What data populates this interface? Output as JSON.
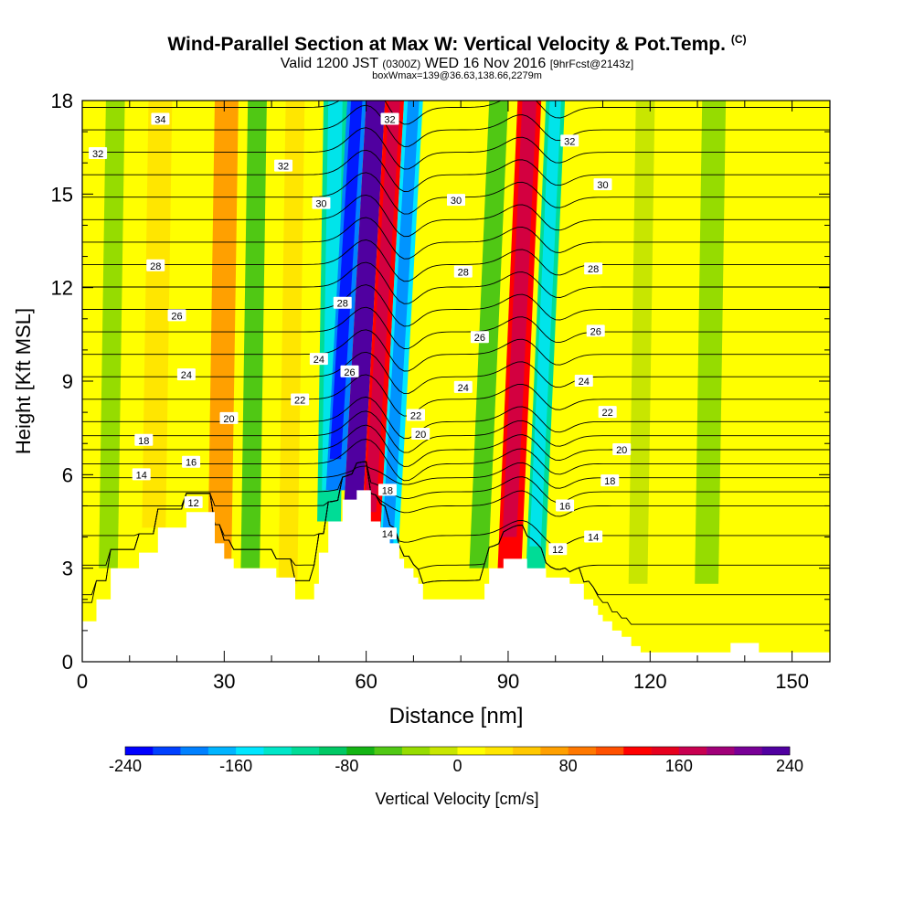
{
  "title": {
    "main": "Wind-Parallel Section at Max W: Vertical Velocity & Pot.Temp.",
    "copyright": "(C)",
    "valid_prefix": "Valid 1200 JST",
    "valid_utc": "(0300Z)",
    "valid_date": "WED 16 Nov 2016",
    "forecast": "[9hrFcst@2143z]",
    "box": "boxWmax=139@36.63,138.66,2279m"
  },
  "chart_data": {
    "type": "heatmap",
    "xlabel": "Distance [nm]",
    "ylabel": "Height [Kft MSL]",
    "xlim": [
      0,
      158
    ],
    "ylim": [
      0,
      18
    ],
    "xticks": [
      0,
      30,
      60,
      90,
      120,
      150
    ],
    "yticks": [
      0,
      3,
      6,
      9,
      12,
      15,
      18
    ],
    "colorbar": {
      "label": "Vertical Velocity [cm/s]",
      "min": -240,
      "max": 240,
      "step": 20,
      "tick_values": [
        -240,
        -160,
        -80,
        0,
        80,
        160,
        240
      ],
      "colors": [
        "#0000ff",
        "#0040ff",
        "#0080ff",
        "#00b4ff",
        "#00e6ff",
        "#00e6c8",
        "#00dc96",
        "#00c864",
        "#14b414",
        "#50c814",
        "#96dc00",
        "#c8e600",
        "#ffff00",
        "#ffe600",
        "#ffc800",
        "#ffa000",
        "#ff7800",
        "#ff5000",
        "#ff0000",
        "#e6001e",
        "#c80050",
        "#a00078",
        "#780096",
        "#5000a0"
      ]
    },
    "terrain": {
      "x": [
        0,
        3,
        3,
        6,
        6,
        12,
        12,
        16,
        16,
        22,
        22,
        24,
        24,
        28,
        28,
        30,
        30,
        32,
        32,
        36,
        36,
        41,
        41,
        45,
        45,
        48,
        48,
        49,
        49,
        50,
        50,
        52,
        52,
        55,
        55,
        58,
        58,
        61,
        61,
        63,
        63,
        65,
        65,
        67,
        67,
        68,
        68,
        70,
        70,
        71,
        71,
        72,
        72,
        74,
        74,
        79,
        79,
        85,
        85,
        86,
        86,
        89,
        89,
        92,
        92,
        94,
        94,
        98,
        98,
        103,
        103,
        105,
        105,
        106,
        106,
        108,
        108,
        109,
        109,
        110,
        110,
        112,
        112,
        114,
        114,
        116,
        116,
        117,
        117,
        118,
        118,
        119,
        119,
        120,
        120,
        137,
        137,
        143,
        143,
        158
      ],
      "y": [
        1.3,
        1.3,
        2.0,
        2.0,
        3.0,
        3.0,
        3.5,
        3.5,
        4.3,
        4.3,
        4.8,
        4.8,
        4.8,
        4.8,
        3.8,
        3.8,
        3.3,
        3.3,
        3.0,
        3.0,
        3.0,
        3.0,
        2.7,
        2.7,
        2.0,
        2.0,
        2.0,
        2.0,
        2.5,
        2.5,
        3.5,
        3.5,
        4.5,
        4.5,
        5.2,
        5.2,
        5.5,
        5.5,
        4.5,
        4.5,
        4.3,
        4.3,
        3.8,
        3.8,
        3.3,
        3.3,
        3.0,
        3.0,
        2.7,
        2.7,
        2.5,
        2.5,
        2.0,
        2.0,
        2.0,
        2.0,
        2.0,
        2.0,
        2.5,
        2.5,
        3.0,
        3.0,
        3.3,
        3.3,
        3.3,
        3.3,
        3.0,
        3.0,
        2.7,
        2.7,
        2.5,
        2.5,
        2.5,
        2.5,
        2.0,
        2.0,
        1.8,
        1.8,
        1.5,
        1.5,
        1.3,
        1.3,
        1.0,
        1.0,
        0.8,
        0.8,
        0.5,
        0.5,
        0.5,
        0.5,
        0.3,
        0.3,
        0.3,
        0.3,
        0.3,
        0.3,
        0.6,
        0.6,
        0.3,
        0.3
      ]
    },
    "vertical_velocity_bands": [
      {
        "x0": 5,
        "x1": 9,
        "w": -30
      },
      {
        "x0": 14,
        "x1": 19,
        "w": 20
      },
      {
        "x0": 28,
        "x1": 33,
        "w": 60
      },
      {
        "x0": 35,
        "x1": 39,
        "w": -50
      },
      {
        "x0": 43,
        "x1": 47,
        "w": 20
      },
      {
        "x0": 51,
        "x1": 56,
        "w": -120
      },
      {
        "x0": 56,
        "x1": 60,
        "w": -190
      },
      {
        "x0": 60,
        "x1": 64,
        "w": 230
      },
      {
        "x0": 64,
        "x1": 68,
        "w": 120
      },
      {
        "x0": 68,
        "x1": 72,
        "w": -150
      },
      {
        "x0": 86,
        "x1": 90,
        "w": -60
      },
      {
        "x0": 92,
        "x1": 97,
        "w": 130
      },
      {
        "x0": 98,
        "x1": 102,
        "w": -120
      },
      {
        "x0": 117,
        "x1": 121,
        "w": -20
      },
      {
        "x0": 131,
        "x1": 136,
        "w": -40
      }
    ],
    "isentropes": {
      "levels": [
        10,
        11,
        12,
        13,
        14,
        15,
        16,
        17,
        18,
        19,
        20,
        21,
        22,
        23,
        24,
        25,
        26,
        27,
        28,
        29,
        30,
        31,
        32,
        33,
        34
      ],
      "labels": [
        {
          "value": 34,
          "x": 16.5,
          "y": 17.4
        },
        {
          "value": 32,
          "x": 3.3,
          "y": 16.3
        },
        {
          "value": 32,
          "x": 42.5,
          "y": 15.9
        },
        {
          "value": 32,
          "x": 65,
          "y": 17.4
        },
        {
          "value": 32,
          "x": 103,
          "y": 16.7
        },
        {
          "value": 30,
          "x": 50.5,
          "y": 14.7
        },
        {
          "value": 30,
          "x": 79,
          "y": 14.8
        },
        {
          "value": 30,
          "x": 110,
          "y": 15.3
        },
        {
          "value": 28,
          "x": 15.5,
          "y": 12.7
        },
        {
          "value": 28,
          "x": 55,
          "y": 11.5
        },
        {
          "value": 28,
          "x": 80.5,
          "y": 12.5
        },
        {
          "value": 28,
          "x": 108,
          "y": 12.6
        },
        {
          "value": 26,
          "x": 20,
          "y": 11.1
        },
        {
          "value": 26,
          "x": 56.5,
          "y": 9.3
        },
        {
          "value": 26,
          "x": 84,
          "y": 10.4
        },
        {
          "value": 26,
          "x": 108.5,
          "y": 10.6
        },
        {
          "value": 24,
          "x": 22,
          "y": 9.2
        },
        {
          "value": 24,
          "x": 50,
          "y": 9.7
        },
        {
          "value": 24,
          "x": 80.5,
          "y": 8.8
        },
        {
          "value": 24,
          "x": 106,
          "y": 9.0
        },
        {
          "value": 22,
          "x": 46,
          "y": 8.4
        },
        {
          "value": 22,
          "x": 70.5,
          "y": 7.9
        },
        {
          "value": 22,
          "x": 111,
          "y": 8.0
        },
        {
          "value": 20,
          "x": 31,
          "y": 7.8
        },
        {
          "value": 20,
          "x": 71.5,
          "y": 7.3
        },
        {
          "value": 20,
          "x": 114,
          "y": 6.8
        },
        {
          "value": 18,
          "x": 13,
          "y": 7.1
        },
        {
          "value": 18,
          "x": 64.5,
          "y": 5.5
        },
        {
          "value": 18,
          "x": 111.5,
          "y": 5.8
        },
        {
          "value": 16,
          "x": 23,
          "y": 6.4
        },
        {
          "value": 16,
          "x": 102,
          "y": 5.0
        },
        {
          "value": 14,
          "x": 12.5,
          "y": 6.0
        },
        {
          "value": 14,
          "x": 64.5,
          "y": 4.1
        },
        {
          "value": 14,
          "x": 108,
          "y": 4.0
        },
        {
          "value": 12,
          "x": 23.5,
          "y": 5.1
        },
        {
          "value": 12,
          "x": 100.5,
          "y": 3.6
        }
      ]
    }
  }
}
